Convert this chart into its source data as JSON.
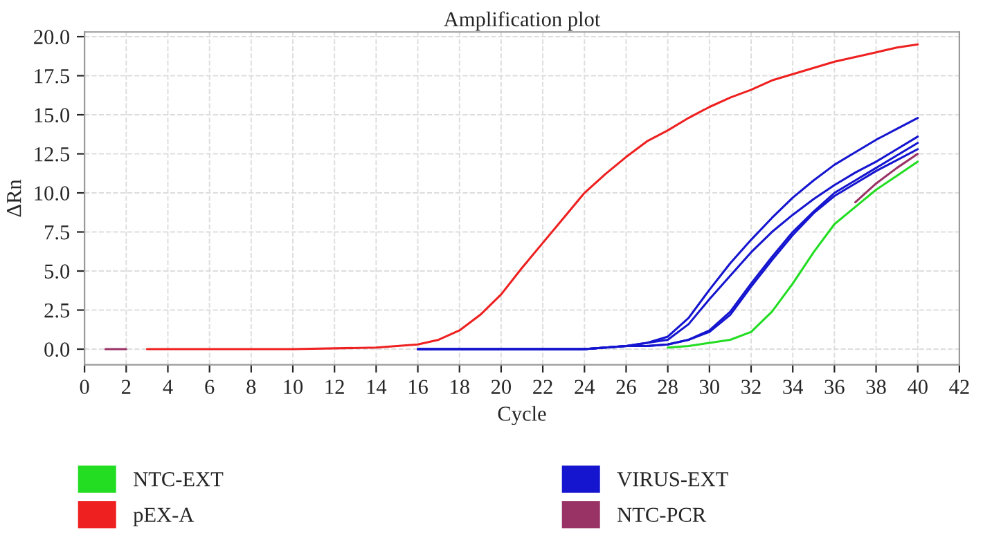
{
  "chart_data": {
    "type": "line",
    "title": "Amplification plot",
    "xlabel": "Cycle",
    "ylabel": "ΔRn",
    "xlim": [
      0,
      42
    ],
    "xticks": [
      0,
      2,
      4,
      6,
      8,
      10,
      12,
      14,
      16,
      18,
      20,
      22,
      24,
      26,
      28,
      30,
      32,
      34,
      36,
      38,
      40,
      42
    ],
    "ylim": [
      -1,
      20.3
    ],
    "yticks": [
      {
        "value": 0,
        "label": "0.0"
      },
      {
        "value": 2.5,
        "label": "2.5"
      },
      {
        "value": 5,
        "label": "5.0"
      },
      {
        "value": 7.5,
        "label": "7.5"
      },
      {
        "value": 10,
        "label": "10.0"
      },
      {
        "value": 12.5,
        "label": "12.5"
      },
      {
        "value": 15,
        "label": "15.0"
      },
      {
        "value": 17.5,
        "label": "17.5"
      },
      {
        "value": 20,
        "label": "20.0"
      }
    ],
    "grid": true,
    "legend": "bottom",
    "marker": "none",
    "line_style": "solid",
    "series": [
      {
        "name": "NTC-EXT",
        "color": "#22dd22",
        "x": [
          28,
          29,
          30,
          31,
          32,
          33,
          34,
          35,
          36,
          37,
          38,
          39,
          40
        ],
        "values": [
          0.1,
          0.2,
          0.4,
          0.6,
          1.1,
          2.4,
          4.2,
          6.2,
          8.0,
          9.1,
          10.2,
          11.1,
          12.0
        ]
      },
      {
        "name": "pEX-A",
        "color": "#ee2020",
        "x": [
          3,
          10,
          14,
          15,
          16,
          17,
          18,
          19,
          20,
          21,
          22,
          23,
          24,
          25,
          26,
          27,
          28,
          29,
          30,
          31,
          32,
          33,
          34,
          35,
          36,
          37,
          38,
          39,
          40
        ],
        "values": [
          0,
          0,
          0.1,
          0.2,
          0.3,
          0.6,
          1.2,
          2.2,
          3.5,
          5.2,
          6.8,
          8.4,
          10.0,
          11.2,
          12.3,
          13.3,
          14.0,
          14.8,
          15.5,
          16.1,
          16.6,
          17.2,
          17.6,
          18.0,
          18.4,
          18.7,
          19.0,
          19.3,
          19.5
        ]
      },
      {
        "name": "VIRUS-EXT",
        "color": "#1515d0",
        "x": [
          16,
          20,
          24,
          25,
          26,
          27,
          28,
          29,
          30,
          31,
          32,
          33,
          34,
          35,
          36,
          37,
          38,
          39,
          40
        ],
        "values": [
          0,
          0,
          0,
          0.1,
          0.2,
          0.4,
          0.8,
          2.0,
          3.8,
          5.5,
          7.0,
          8.4,
          9.7,
          10.8,
          11.8,
          12.6,
          13.4,
          14.1,
          14.8
        ]
      },
      {
        "color": "#1515d0",
        "x": [
          16,
          20,
          24,
          25,
          26,
          27,
          28,
          29,
          30,
          31,
          32,
          33,
          34,
          35,
          36,
          37,
          38,
          39,
          40
        ],
        "values": [
          0,
          0,
          0,
          0.1,
          0.2,
          0.4,
          0.6,
          1.6,
          3.2,
          4.7,
          6.2,
          7.5,
          8.6,
          9.6,
          10.5,
          11.3,
          12.0,
          12.8,
          13.6
        ]
      },
      {
        "color": "#1515d0",
        "x": [
          16,
          20,
          24,
          25,
          26,
          27,
          28,
          29,
          30,
          31,
          32,
          33,
          34,
          35,
          36,
          37,
          38,
          39,
          40
        ],
        "values": [
          0,
          0,
          0,
          0.1,
          0.2,
          0.2,
          0.3,
          0.6,
          1.2,
          2.4,
          4.2,
          5.9,
          7.5,
          8.8,
          10.0,
          10.8,
          11.6,
          12.4,
          13.2
        ]
      },
      {
        "color": "#1515d0",
        "x": [
          16,
          20,
          24,
          25,
          26,
          27,
          28,
          29,
          30,
          31,
          32,
          33,
          34,
          35,
          36,
          37,
          38,
          39,
          40
        ],
        "values": [
          0,
          0,
          0,
          0.1,
          0.2,
          0.2,
          0.3,
          0.6,
          1.1,
          2.2,
          4.0,
          5.7,
          7.3,
          8.7,
          9.8,
          10.6,
          11.4,
          12.1,
          12.8
        ]
      },
      {
        "name": "NTC-PCR",
        "color": "#993366",
        "x": [
          1,
          2,
          36.5,
          37,
          38,
          39,
          40
        ],
        "values": [
          0,
          0,
          null,
          9.4,
          10.6,
          11.6,
          12.5
        ]
      }
    ]
  }
}
